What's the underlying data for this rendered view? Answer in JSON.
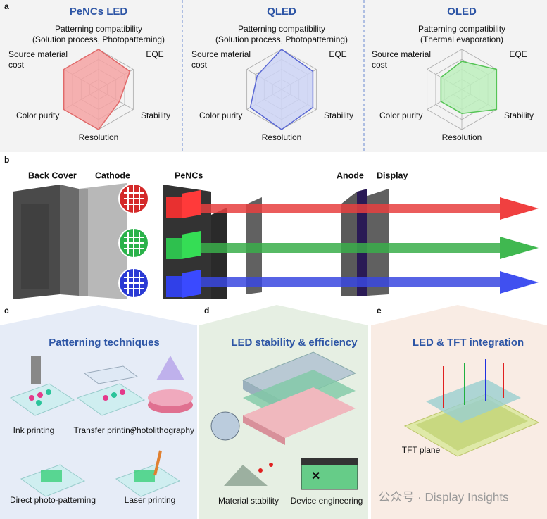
{
  "panel_labels": [
    "a",
    "b",
    "c",
    "d",
    "e"
  ],
  "radar_ylim": [
    0,
    5
  ],
  "radars": [
    {
      "title": "PeNCs LED",
      "fill": "#f5a3a3",
      "stroke": "#e06a6a",
      "axes": [
        [
          "Patterning compatibility",
          "(Solution process, Photopatterning)"
        ],
        [
          "EQE"
        ],
        [
          "Stability"
        ],
        [
          "Resolution"
        ],
        [
          "Color purity"
        ],
        [
          "Source material",
          "cost"
        ]
      ],
      "values": [
        5,
        4.5,
        3,
        5,
        5,
        5
      ]
    },
    {
      "title": "QLED",
      "fill": "#cdd4f5",
      "stroke": "#5a68d4",
      "axes": [
        [
          "Patterning compatibility",
          "(Solution process, Photopatterning)"
        ],
        [
          "EQE"
        ],
        [
          "Stability"
        ],
        [
          "Resolution"
        ],
        [
          "Color purity"
        ],
        [
          "Source material",
          "cost"
        ]
      ],
      "values": [
        5,
        4.5,
        4.5,
        5,
        4.5,
        3.5
      ]
    },
    {
      "title": "OLED",
      "fill": "#bdeebd",
      "stroke": "#55c455",
      "axes": [
        [
          "Patterning compatibility",
          "(Thermal evaporation)"
        ],
        [
          "EQE"
        ],
        [
          "Stability"
        ],
        [
          "Resolution"
        ],
        [
          "Color purity"
        ],
        [
          "Source material",
          "cost"
        ]
      ],
      "values": [
        3.5,
        5,
        5,
        3,
        3,
        3
      ]
    }
  ],
  "structure_labels": [
    "Back Cover",
    "Cathode",
    "PeNCs",
    "Anode",
    "Display"
  ],
  "patterning": {
    "title": "Patterning techniques",
    "labels": [
      "Ink printing",
      "Transfer printing",
      "Photolithography",
      "Direct photo-patterning",
      "Laser printing"
    ]
  },
  "stability": {
    "title": "LED stability & efficiency",
    "labels": [
      "Material stability",
      "Device engineering"
    ]
  },
  "integration": {
    "title": "LED & TFT integration",
    "labels": [
      "TFT plane"
    ]
  },
  "watermark": "公众号 · Display Insights"
}
